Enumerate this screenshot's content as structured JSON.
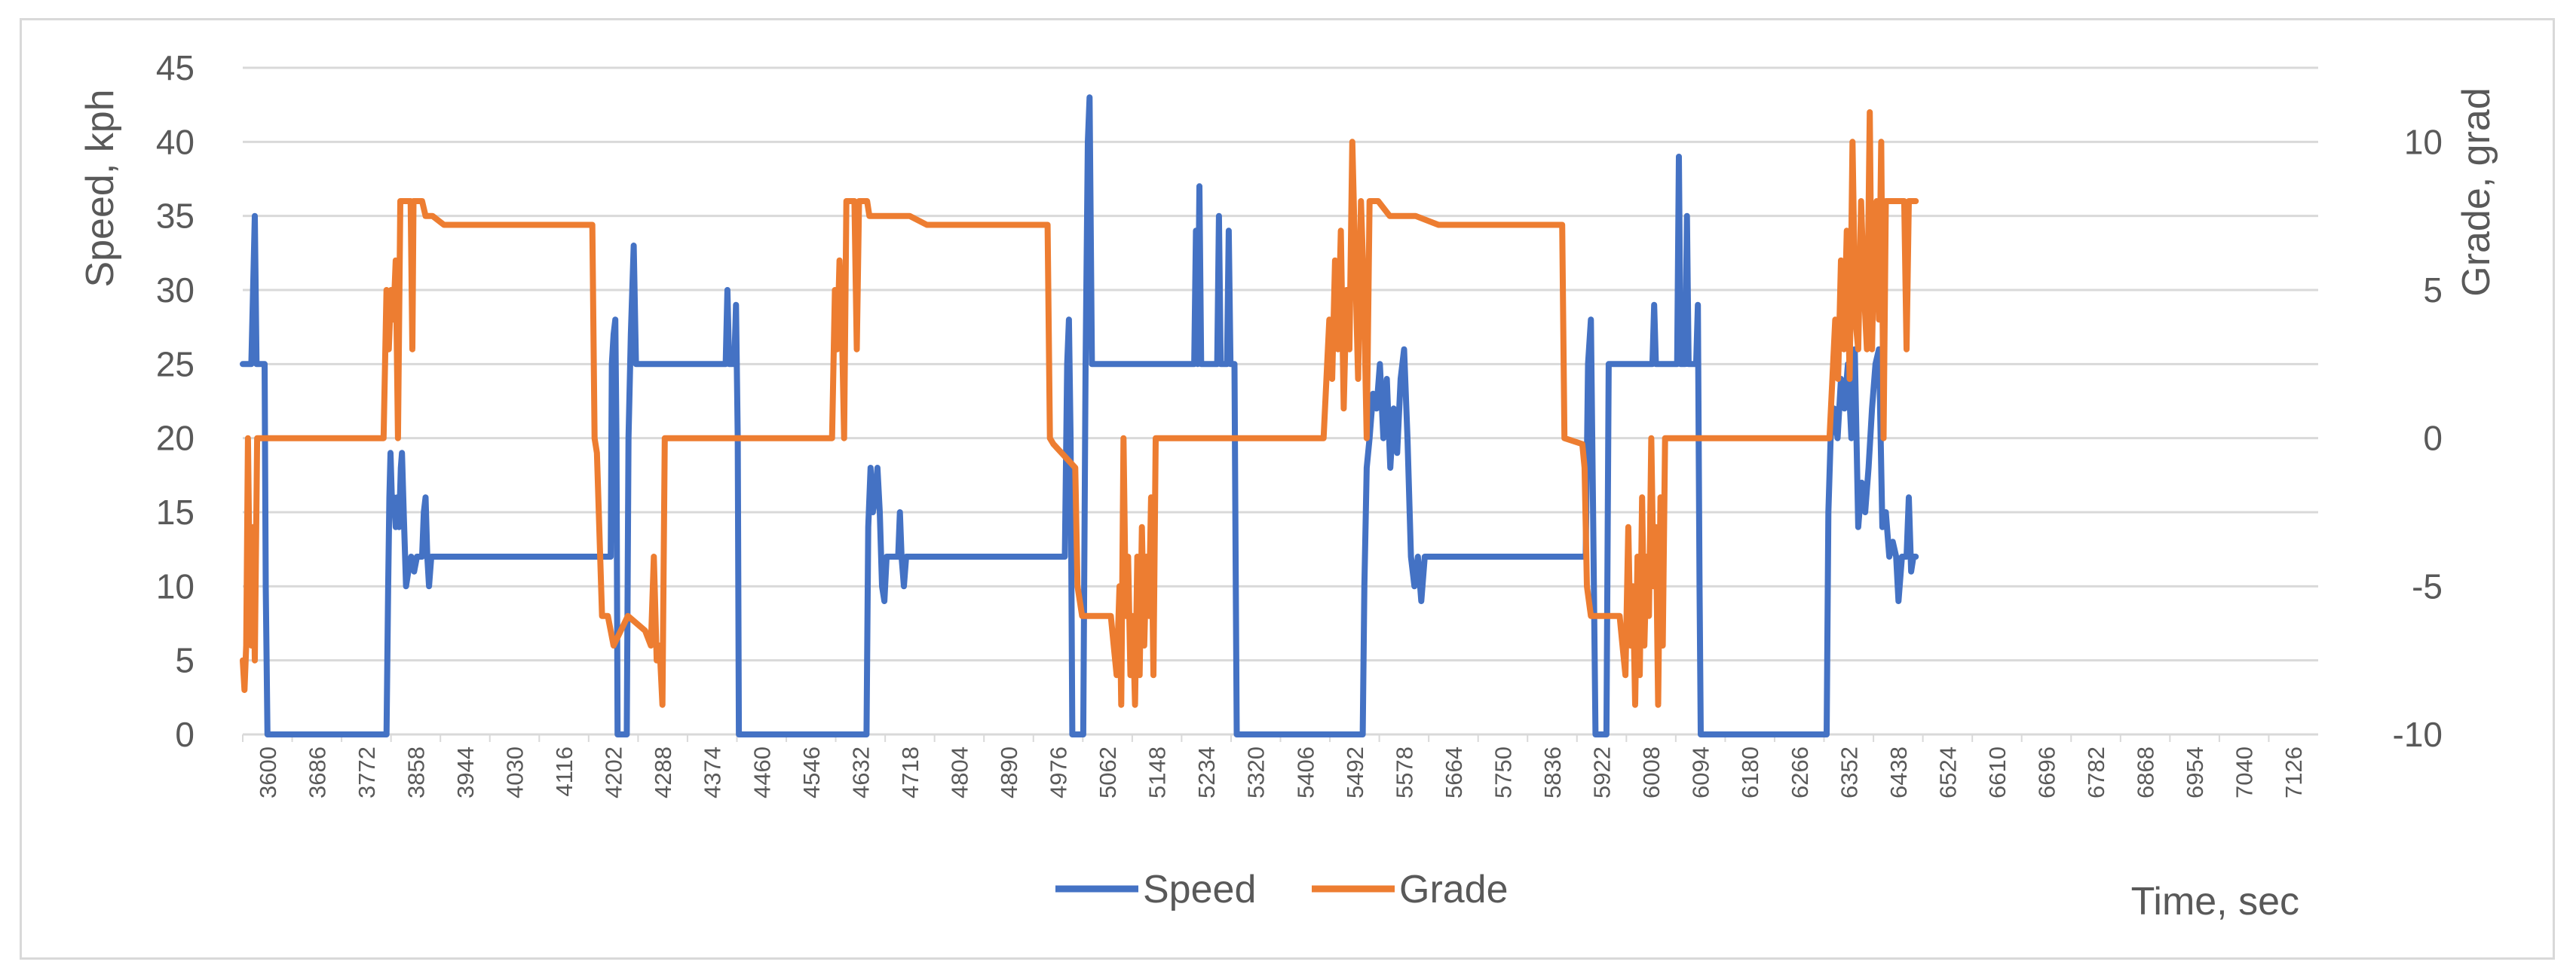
{
  "chart_data": {
    "type": "line",
    "title": "",
    "xlabel": "Time, sec",
    "ylabel_left": "Speed, kph",
    "ylabel_right": "Grade, grad",
    "xlim": [
      3600,
      7210
    ],
    "ylim_left": [
      0,
      45
    ],
    "ylim_right": [
      -10,
      12.5
    ],
    "yticks_left": [
      "0",
      "5",
      "10",
      "15",
      "20",
      "25",
      "30",
      "35",
      "40",
      "45"
    ],
    "yticks_right": [
      "-10",
      "-5",
      "0",
      "5",
      "10"
    ],
    "xticks": [
      "3600",
      "3686",
      "3772",
      "3858",
      "3944",
      "4030",
      "4116",
      "4202",
      "4288",
      "4374",
      "4460",
      "4546",
      "4632",
      "4718",
      "4804",
      "4890",
      "4976",
      "5062",
      "5148",
      "5234",
      "5320",
      "5406",
      "5492",
      "5578",
      "5664",
      "5750",
      "5836",
      "5922",
      "6008",
      "6094",
      "6180",
      "6266",
      "6352",
      "6438",
      "6524",
      "6610",
      "6696",
      "6782",
      "6868",
      "6954",
      "7040",
      "7126"
    ],
    "grid": "horizontal",
    "legend": "bottom-center",
    "colors": {
      "speed": "#4472c4",
      "grade": "#ed7d31"
    },
    "series": [
      {
        "name": "Speed",
        "axis": "left",
        "points": [
          [
            3600,
            25
          ],
          [
            3615,
            25
          ],
          [
            3618,
            30
          ],
          [
            3621,
            35
          ],
          [
            3624,
            25
          ],
          [
            3638,
            25
          ],
          [
            3640,
            10
          ],
          [
            3643,
            0
          ],
          [
            3850,
            0
          ],
          [
            3853,
            10
          ],
          [
            3855,
            16
          ],
          [
            3857,
            19
          ],
          [
            3860,
            15
          ],
          [
            3863,
            16
          ],
          [
            3866,
            14
          ],
          [
            3869,
            16
          ],
          [
            3872,
            14
          ],
          [
            3875,
            18
          ],
          [
            3877,
            19
          ],
          [
            3880,
            15
          ],
          [
            3884,
            10
          ],
          [
            3888,
            11
          ],
          [
            3893,
            12
          ],
          [
            3898,
            11
          ],
          [
            3903,
            12
          ],
          [
            3912,
            12
          ],
          [
            3915,
            15
          ],
          [
            3918,
            16
          ],
          [
            3921,
            12
          ],
          [
            3924,
            10
          ],
          [
            3928,
            12
          ],
          [
            4240,
            12
          ],
          [
            4242,
            25
          ],
          [
            4245,
            27
          ],
          [
            4248,
            28
          ],
          [
            4250,
            20
          ],
          [
            4252,
            0
          ],
          [
            4268,
            0
          ],
          [
            4271,
            20
          ],
          [
            4275,
            27
          ],
          [
            4280,
            33
          ],
          [
            4284,
            25
          ],
          [
            4295,
            25
          ],
          [
            4440,
            25
          ],
          [
            4443,
            30
          ],
          [
            4446,
            25
          ],
          [
            4455,
            25
          ],
          [
            4458,
            29
          ],
          [
            4461,
            20
          ],
          [
            4463,
            0
          ],
          [
            4685,
            0
          ],
          [
            4688,
            14
          ],
          [
            4692,
            18
          ],
          [
            4696,
            15
          ],
          [
            4700,
            16
          ],
          [
            4704,
            18
          ],
          [
            4708,
            15
          ],
          [
            4712,
            10
          ],
          [
            4716,
            9
          ],
          [
            4720,
            12
          ],
          [
            4740,
            12
          ],
          [
            4743,
            15
          ],
          [
            4746,
            12
          ],
          [
            4750,
            10
          ],
          [
            4754,
            12
          ],
          [
            5030,
            12
          ],
          [
            5034,
            25
          ],
          [
            5037,
            28
          ],
          [
            5040,
            20
          ],
          [
            5043,
            0
          ],
          [
            5062,
            0
          ],
          [
            5066,
            25
          ],
          [
            5070,
            40
          ],
          [
            5073,
            43
          ],
          [
            5077,
            25
          ],
          [
            5255,
            25
          ],
          [
            5258,
            34
          ],
          [
            5261,
            25
          ],
          [
            5264,
            37
          ],
          [
            5267,
            25
          ],
          [
            5295,
            25
          ],
          [
            5298,
            35
          ],
          [
            5301,
            25
          ],
          [
            5312,
            25
          ],
          [
            5315,
            34
          ],
          [
            5318,
            25
          ],
          [
            5325,
            25
          ],
          [
            5327,
            12
          ],
          [
            5329,
            0
          ],
          [
            5548,
            0
          ],
          [
            5551,
            10
          ],
          [
            5555,
            18
          ],
          [
            5560,
            20
          ],
          [
            5566,
            23
          ],
          [
            5572,
            22
          ],
          [
            5578,
            25
          ],
          [
            5584,
            20
          ],
          [
            5590,
            24
          ],
          [
            5596,
            18
          ],
          [
            5602,
            22
          ],
          [
            5608,
            19
          ],
          [
            5614,
            24
          ],
          [
            5620,
            26
          ],
          [
            5626,
            20
          ],
          [
            5632,
            12
          ],
          [
            5638,
            10
          ],
          [
            5644,
            12
          ],
          [
            5650,
            9
          ],
          [
            5656,
            12
          ],
          [
            5670,
            12
          ],
          [
            5936,
            12
          ],
          [
            5940,
            25
          ],
          [
            5945,
            28
          ],
          [
            5949,
            14
          ],
          [
            5953,
            0
          ],
          [
            5972,
            0
          ],
          [
            5976,
            25
          ],
          [
            6052,
            25
          ],
          [
            6055,
            29
          ],
          [
            6058,
            25
          ],
          [
            6095,
            25
          ],
          [
            6098,
            39
          ],
          [
            6101,
            25
          ],
          [
            6109,
            25
          ],
          [
            6112,
            35
          ],
          [
            6115,
            25
          ],
          [
            6128,
            25
          ],
          [
            6131,
            29
          ],
          [
            6134,
            10
          ],
          [
            6136,
            0
          ],
          [
            6355,
            0
          ],
          [
            6358,
            15
          ],
          [
            6362,
            20
          ],
          [
            6368,
            22
          ],
          [
            6374,
            20
          ],
          [
            6380,
            24
          ],
          [
            6386,
            22
          ],
          [
            6392,
            25
          ],
          [
            6398,
            20
          ],
          [
            6404,
            26
          ],
          [
            6410,
            14
          ],
          [
            6416,
            17
          ],
          [
            6422,
            15
          ],
          [
            6428,
            18
          ],
          [
            6434,
            22
          ],
          [
            6440,
            25
          ],
          [
            6446,
            26
          ],
          [
            6452,
            14
          ],
          [
            6458,
            15
          ],
          [
            6464,
            12
          ],
          [
            6470,
            13
          ],
          [
            6476,
            12
          ],
          [
            6480,
            9
          ],
          [
            6486,
            12
          ],
          [
            6494,
            12
          ],
          [
            6498,
            16
          ],
          [
            6502,
            11
          ],
          [
            6506,
            12
          ],
          [
            6510,
            12
          ]
        ]
      },
      {
        "name": "Grade",
        "axis": "right",
        "points": [
          [
            3600,
            -7.5
          ],
          [
            3603,
            -8.5
          ],
          [
            3606,
            -7
          ],
          [
            3609,
            0
          ],
          [
            3612,
            -5
          ],
          [
            3615,
            -7
          ],
          [
            3618,
            -3
          ],
          [
            3621,
            -7.5
          ],
          [
            3625,
            0
          ],
          [
            3630,
            0
          ],
          [
            3845,
            0
          ],
          [
            3850,
            5
          ],
          [
            3854,
            3
          ],
          [
            3858,
            5
          ],
          [
            3862,
            4
          ],
          [
            3866,
            6
          ],
          [
            3870,
            0
          ],
          [
            3874,
            8
          ],
          [
            3878,
            8
          ],
          [
            3886,
            8
          ],
          [
            3892,
            8
          ],
          [
            3895,
            3
          ],
          [
            3897,
            8
          ],
          [
            3912,
            8
          ],
          [
            3918,
            7.5
          ],
          [
            3930,
            7.5
          ],
          [
            3950,
            7.2
          ],
          [
            4208,
            7.2
          ],
          [
            4212,
            0
          ],
          [
            4216,
            -0.5
          ],
          [
            4225,
            -6
          ],
          [
            4235,
            -6
          ],
          [
            4245,
            -7
          ],
          [
            4270,
            -6
          ],
          [
            4300,
            -6.5
          ],
          [
            4310,
            -7
          ],
          [
            4315,
            -4
          ],
          [
            4320,
            -7.5
          ],
          [
            4325,
            -7
          ],
          [
            4330,
            -9
          ],
          [
            4334,
            0
          ],
          [
            4340,
            0
          ],
          [
            4625,
            0
          ],
          [
            4630,
            5
          ],
          [
            4634,
            3
          ],
          [
            4638,
            6
          ],
          [
            4642,
            4
          ],
          [
            4646,
            0
          ],
          [
            4650,
            8
          ],
          [
            4664,
            8
          ],
          [
            4668,
            3
          ],
          [
            4672,
            8
          ],
          [
            4686,
            8
          ],
          [
            4690,
            7.5
          ],
          [
            4760,
            7.5
          ],
          [
            4790,
            7.2
          ],
          [
            5000,
            7.2
          ],
          [
            5004,
            0
          ],
          [
            5010,
            -0.2
          ],
          [
            5048,
            -1
          ],
          [
            5052,
            -5
          ],
          [
            5060,
            -6
          ],
          [
            5110,
            -6
          ],
          [
            5115,
            -7
          ],
          [
            5120,
            -8
          ],
          [
            5125,
            -5
          ],
          [
            5128,
            -9
          ],
          [
            5132,
            0
          ],
          [
            5136,
            -6
          ],
          [
            5140,
            -4
          ],
          [
            5144,
            -8
          ],
          [
            5148,
            -6
          ],
          [
            5152,
            -9
          ],
          [
            5156,
            -4
          ],
          [
            5160,
            -8
          ],
          [
            5164,
            -3
          ],
          [
            5168,
            -7
          ],
          [
            5172,
            -4
          ],
          [
            5176,
            -6
          ],
          [
            5180,
            -2
          ],
          [
            5184,
            -8
          ],
          [
            5188,
            0
          ],
          [
            5192,
            0
          ],
          [
            5480,
            0
          ],
          [
            5485,
            2
          ],
          [
            5490,
            4
          ],
          [
            5495,
            2
          ],
          [
            5500,
            6
          ],
          [
            5505,
            3
          ],
          [
            5510,
            7
          ],
          [
            5515,
            1
          ],
          [
            5520,
            5
          ],
          [
            5525,
            3
          ],
          [
            5530,
            10
          ],
          [
            5535,
            6
          ],
          [
            5540,
            2
          ],
          [
            5545,
            8
          ],
          [
            5550,
            5
          ],
          [
            5555,
            0
          ],
          [
            5560,
            8
          ],
          [
            5575,
            8
          ],
          [
            5595,
            7.5
          ],
          [
            5640,
            7.5
          ],
          [
            5680,
            7.2
          ],
          [
            5895,
            7.2
          ],
          [
            5899,
            0
          ],
          [
            5930,
            -0.2
          ],
          [
            5934,
            -1
          ],
          [
            5938,
            -5
          ],
          [
            5945,
            -6
          ],
          [
            5995,
            -6
          ],
          [
            6000,
            -7
          ],
          [
            6005,
            -8
          ],
          [
            6010,
            -3
          ],
          [
            6014,
            -7
          ],
          [
            6018,
            -5
          ],
          [
            6022,
            -9
          ],
          [
            6026,
            -4
          ],
          [
            6030,
            -8
          ],
          [
            6034,
            -2
          ],
          [
            6038,
            -7
          ],
          [
            6042,
            -4
          ],
          [
            6046,
            -6
          ],
          [
            6050,
            0
          ],
          [
            6054,
            -5
          ],
          [
            6058,
            -3
          ],
          [
            6062,
            -9
          ],
          [
            6066,
            -2
          ],
          [
            6070,
            -7
          ],
          [
            6074,
            0
          ],
          [
            6080,
            0
          ],
          [
            6360,
            0
          ],
          [
            6365,
            2
          ],
          [
            6370,
            4
          ],
          [
            6375,
            2
          ],
          [
            6380,
            6
          ],
          [
            6385,
            3
          ],
          [
            6390,
            7
          ],
          [
            6395,
            2
          ],
          [
            6400,
            10
          ],
          [
            6405,
            4
          ],
          [
            6410,
            3
          ],
          [
            6415,
            8
          ],
          [
            6420,
            5
          ],
          [
            6425,
            3
          ],
          [
            6430,
            11
          ],
          [
            6434,
            3
          ],
          [
            6438,
            7
          ],
          [
            6442,
            8
          ],
          [
            6446,
            4
          ],
          [
            6450,
            10
          ],
          [
            6454,
            0
          ],
          [
            6458,
            8
          ],
          [
            6475,
            8
          ],
          [
            6490,
            8
          ],
          [
            6494,
            3
          ],
          [
            6498,
            8
          ],
          [
            6510,
            8
          ]
        ]
      }
    ]
  }
}
